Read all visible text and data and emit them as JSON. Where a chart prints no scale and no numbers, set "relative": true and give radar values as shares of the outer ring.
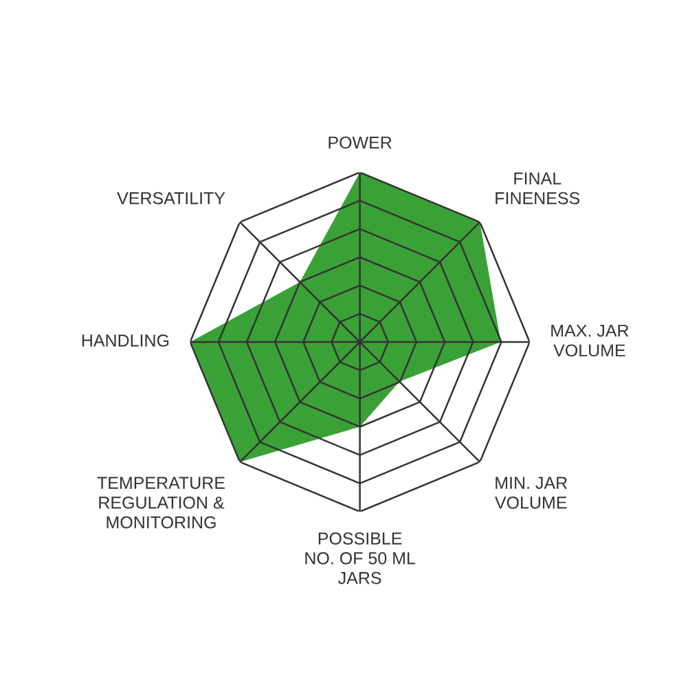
{
  "chart_data": {
    "type": "radar",
    "relative": true,
    "grid": true,
    "categories": [
      "POWER",
      "FINAL\nFINENESS",
      "MAX. JAR\nVOLUME",
      "MIN. JAR\nVOLUME",
      "POSSIBLE\nNO. OF 50 ML\nJARS",
      "TEMPERATURE\nREGULATION &\nMONITORING",
      "HANDLING",
      "VERSATILITY"
    ],
    "series": [
      {
        "color": "#3aa137",
        "values": [
          1,
          1,
          0.83,
          0.33,
          0.5,
          1,
          1,
          0.5
        ]
      }
    ]
  }
}
